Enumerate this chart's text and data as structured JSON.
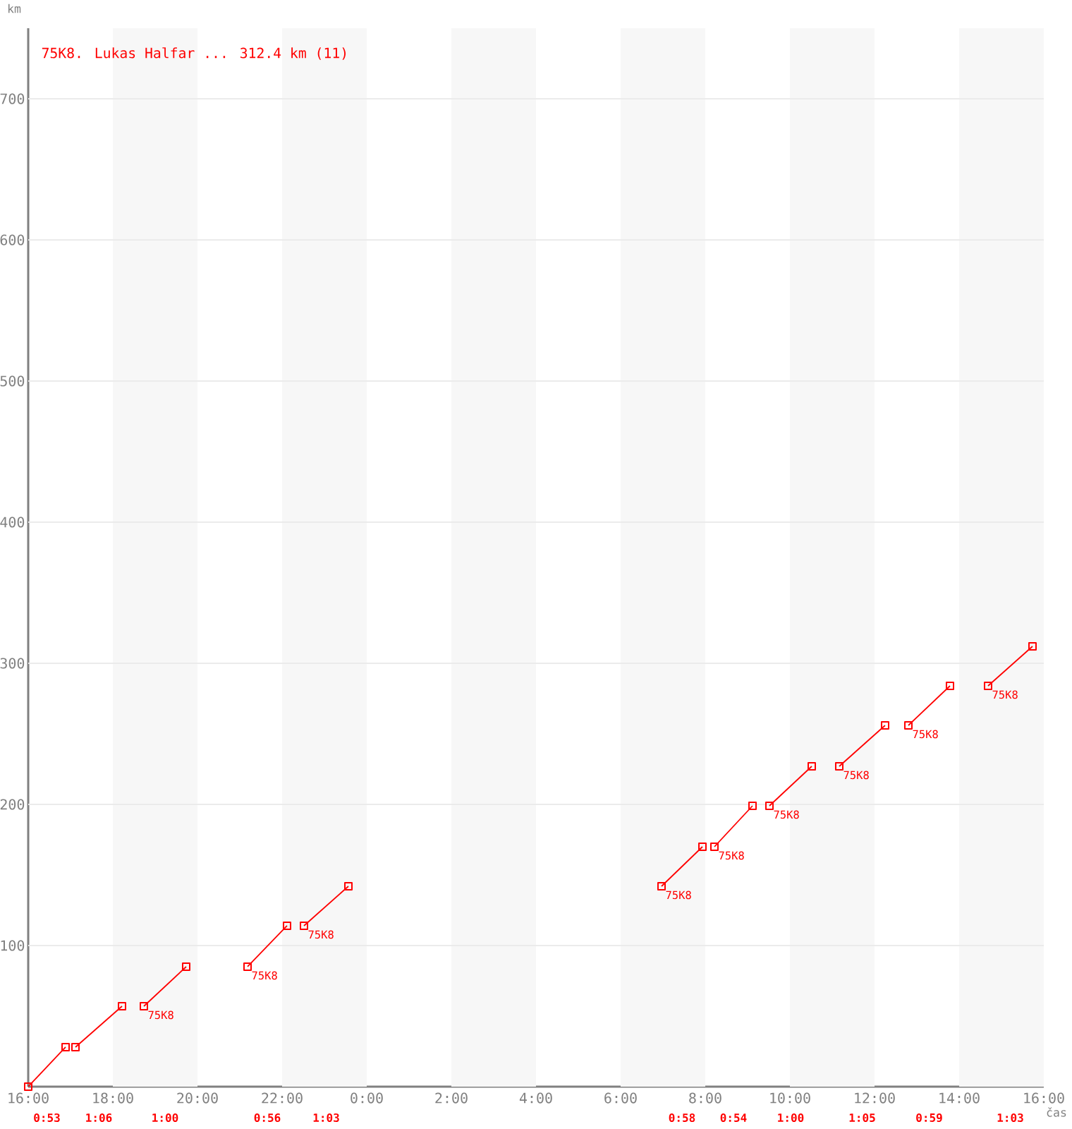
{
  "chart_data": {
    "type": "line",
    "title": "75K8. Lukas Halfar ... 312.4 km (11)",
    "xlabel": "čas",
    "ylabel": "km",
    "xlim": [
      "2000-01-01T16:00",
      "2000-01-02T16:00"
    ],
    "ylim": [
      0,
      750
    ],
    "xticks": [
      {
        "value": "2000-01-01T16:00",
        "label": "16:00"
      },
      {
        "value": "2000-01-01T18:00",
        "label": "18:00"
      },
      {
        "value": "2000-01-01T20:00",
        "label": "20:00"
      },
      {
        "value": "2000-01-01T22:00",
        "label": "22:00"
      },
      {
        "value": "2000-01-02T00:00",
        "label": "0:00"
      },
      {
        "value": "2000-01-02T02:00",
        "label": "2:00"
      },
      {
        "value": "2000-01-02T04:00",
        "label": "4:00"
      },
      {
        "value": "2000-01-02T06:00",
        "label": "6:00"
      },
      {
        "value": "2000-01-02T08:00",
        "label": "8:00"
      },
      {
        "value": "2000-01-02T10:00",
        "label": "10:00"
      },
      {
        "value": "2000-01-02T12:00",
        "label": "12:00"
      },
      {
        "value": "2000-01-02T14:00",
        "label": "14:00"
      },
      {
        "value": "2000-01-02T16:00",
        "label": "16:00"
      }
    ],
    "yticks": [
      100,
      200,
      300,
      400,
      500,
      600,
      700
    ],
    "grid": "y",
    "marker": "square",
    "line_style": "solid",
    "bands": [
      {
        "axis": "x",
        "from": "2000-01-01T18:00",
        "to": "2000-01-01T20:00",
        "color": "#f7f7f7"
      },
      {
        "axis": "x",
        "from": "2000-01-01T22:00",
        "to": "2000-01-02T00:00",
        "color": "#f7f7f7"
      },
      {
        "axis": "x",
        "from": "2000-01-02T02:00",
        "to": "2000-01-02T04:00",
        "color": "#f7f7f7"
      },
      {
        "axis": "x",
        "from": "2000-01-02T06:00",
        "to": "2000-01-02T08:00",
        "color": "#f7f7f7"
      },
      {
        "axis": "x",
        "from": "2000-01-02T10:00",
        "to": "2000-01-02T12:00",
        "color": "#f7f7f7"
      },
      {
        "axis": "x",
        "from": "2000-01-02T14:00",
        "to": "2000-01-02T16:00",
        "color": "#f7f7f7"
      }
    ],
    "series": [
      {
        "color": "#ff0000",
        "x": [
          "2000-01-01T16:00",
          "2000-01-01T16:53"
        ],
        "values": [
          0,
          28
        ]
      },
      {
        "color": "#ff0000",
        "x": [
          "2000-01-01T17:07",
          "2000-01-01T18:13"
        ],
        "values": [
          28,
          57
        ]
      },
      {
        "color": "#ff0000",
        "x": [
          "2000-01-01T18:44",
          "2000-01-01T19:44"
        ],
        "values": [
          57,
          85
        ]
      },
      {
        "color": "#ff0000",
        "x": [
          "2000-01-01T21:11",
          "2000-01-01T22:07"
        ],
        "values": [
          85,
          114
        ]
      },
      {
        "color": "#ff0000",
        "x": [
          "2000-01-01T22:31",
          "2000-01-01T23:34"
        ],
        "values": [
          114,
          142
        ]
      },
      {
        "color": "#ff0000",
        "x": [
          "2000-01-02T06:58",
          "2000-01-02T07:56"
        ],
        "values": [
          142,
          170
        ]
      },
      {
        "color": "#ff0000",
        "x": [
          "2000-01-02T08:13",
          "2000-01-02T09:07"
        ],
        "values": [
          170,
          199
        ]
      },
      {
        "color": "#ff0000",
        "x": [
          "2000-01-02T09:31",
          "2000-01-02T10:31"
        ],
        "values": [
          199,
          227
        ]
      },
      {
        "color": "#ff0000",
        "x": [
          "2000-01-02T11:10",
          "2000-01-02T12:15"
        ],
        "values": [
          227,
          256
        ]
      },
      {
        "color": "#ff0000",
        "x": [
          "2000-01-02T12:48",
          "2000-01-02T13:47"
        ],
        "values": [
          256,
          284
        ]
      },
      {
        "color": "#ff0000",
        "x": [
          "2000-01-02T14:41",
          "2000-01-02T15:44"
        ],
        "values": [
          284,
          312
        ]
      }
    ],
    "annotations": [
      {
        "text": "75K8",
        "x": "2000-01-01T18:44",
        "y": 57
      },
      {
        "text": "75K8",
        "x": "2000-01-01T21:11",
        "y": 85
      },
      {
        "text": "75K8",
        "x": "2000-01-01T22:31",
        "y": 114
      },
      {
        "text": "75K8",
        "x": "2000-01-02T06:58",
        "y": 142
      },
      {
        "text": "75K8",
        "x": "2000-01-02T08:13",
        "y": 170
      },
      {
        "text": "75K8",
        "x": "2000-01-02T09:31",
        "y": 199
      },
      {
        "text": "75K8",
        "x": "2000-01-02T11:10",
        "y": 227
      },
      {
        "text": "75K8",
        "x": "2000-01-02T12:48",
        "y": 256
      },
      {
        "text": "75K8",
        "x": "2000-01-02T14:41",
        "y": 284
      },
      "0:53",
      "1:06",
      "1:00",
      "0:56",
      "1:03",
      "0:58",
      "0:54",
      "1:00",
      "1:05",
      "0:59",
      "1:03"
    ]
  }
}
